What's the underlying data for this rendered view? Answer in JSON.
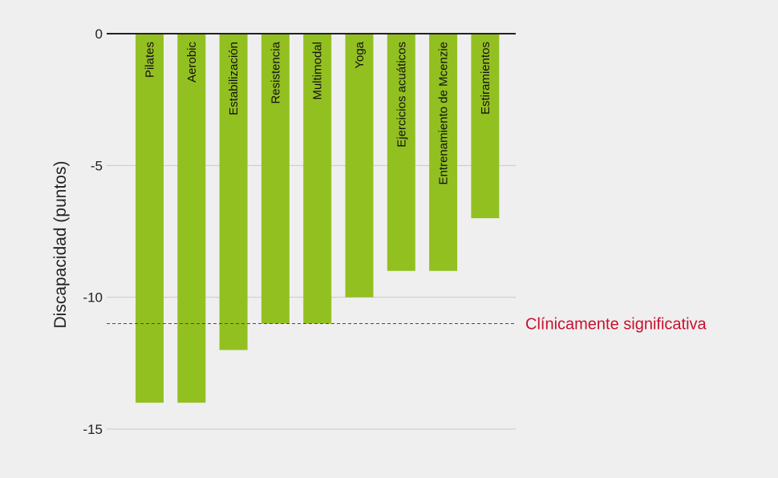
{
  "chart_data": {
    "type": "bar",
    "ylabel": "Discapacidad (puntos)",
    "ylim": [
      -15,
      0
    ],
    "yticks": [
      0,
      -5,
      -10,
      -15
    ],
    "ytick_labels": [
      "0",
      "-5",
      "-10",
      "-15"
    ],
    "grid": true,
    "categories": [
      "Pilates",
      "Aerobic",
      "Estabilización",
      "Resistencia",
      "Multimodal",
      "Yoga",
      "Ejercicios acuáticos",
      "Entrenamiento de Mcenzie",
      "Estiramientos"
    ],
    "values": [
      -14,
      -14,
      -12,
      -11,
      -11,
      -10,
      -9,
      -9,
      -7
    ],
    "reference_line": {
      "value": -11,
      "label": "Clínicamente significativa",
      "color": "#c8102e",
      "style": "dashed"
    },
    "colors": {
      "bar": "#93c021",
      "grid": "#c9c9c9",
      "axis": "#222222"
    }
  }
}
